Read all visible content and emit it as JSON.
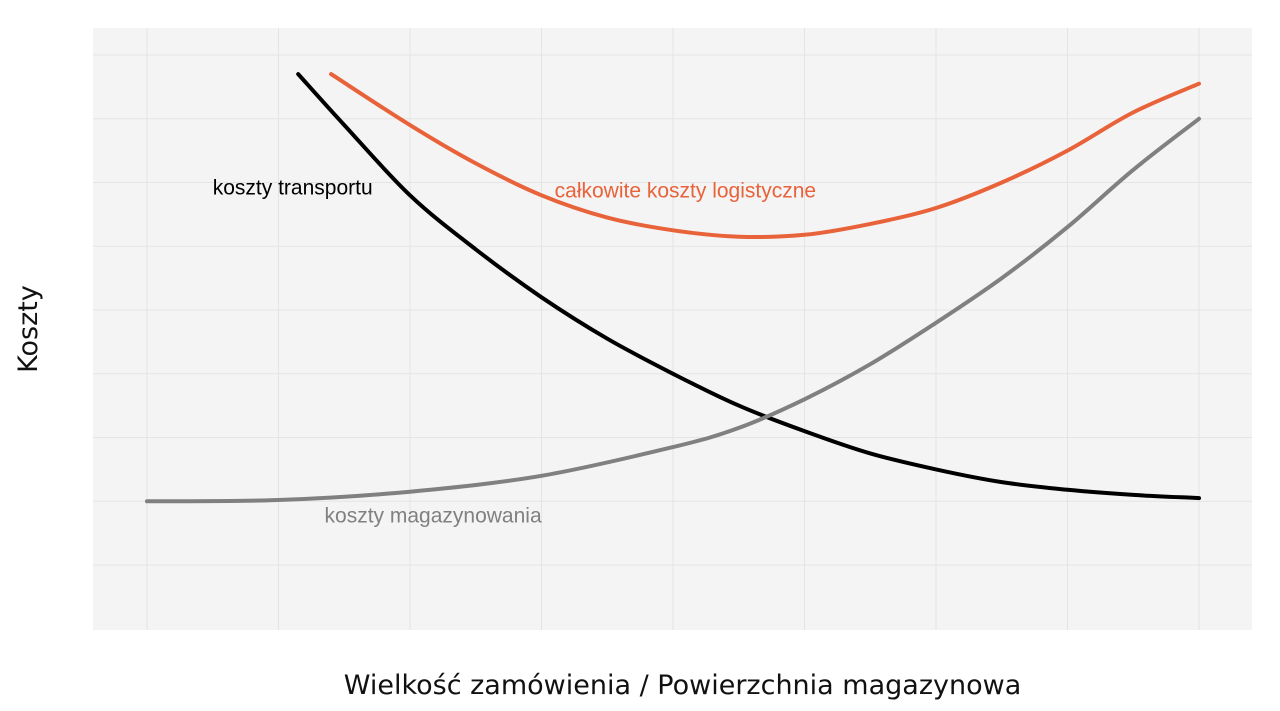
{
  "chart_data": {
    "type": "line",
    "title": "",
    "xlabel": "Wielkość zamówienia / Powierzchnia magazynowa",
    "ylabel": "Koszty",
    "xlim": [
      0,
      8
    ],
    "ylim": [
      0,
      8
    ],
    "grid": true,
    "legend": "none",
    "series": [
      {
        "name": "koszty transportu",
        "color": "#000000",
        "points": [
          [
            1.15,
            7.7
          ],
          [
            1.5,
            6.9
          ],
          [
            2.0,
            5.8
          ],
          [
            2.5,
            4.95
          ],
          [
            3.0,
            4.2
          ],
          [
            3.5,
            3.55
          ],
          [
            4.0,
            3.0
          ],
          [
            4.5,
            2.5
          ],
          [
            5.0,
            2.1
          ],
          [
            5.5,
            1.75
          ],
          [
            6.0,
            1.5
          ],
          [
            6.5,
            1.3
          ],
          [
            7.0,
            1.18
          ],
          [
            7.5,
            1.1
          ],
          [
            8.0,
            1.05
          ]
        ]
      },
      {
        "name": "koszty magazynowania",
        "color": "#808080",
        "points": [
          [
            0.0,
            1.0
          ],
          [
            1.0,
            1.02
          ],
          [
            2.0,
            1.15
          ],
          [
            3.0,
            1.4
          ],
          [
            4.0,
            1.85
          ],
          [
            4.5,
            2.15
          ],
          [
            5.0,
            2.6
          ],
          [
            5.5,
            3.15
          ],
          [
            6.0,
            3.8
          ],
          [
            6.5,
            4.5
          ],
          [
            7.0,
            5.3
          ],
          [
            7.5,
            6.2
          ],
          [
            8.0,
            7.0
          ]
        ]
      },
      {
        "name": "całkowite koszty logistyczne",
        "color": "#e8623a",
        "points": [
          [
            1.4,
            7.7
          ],
          [
            2.0,
            6.9
          ],
          [
            2.5,
            6.3
          ],
          [
            3.0,
            5.8
          ],
          [
            3.5,
            5.45
          ],
          [
            4.0,
            5.25
          ],
          [
            4.5,
            5.15
          ],
          [
            5.0,
            5.18
          ],
          [
            5.5,
            5.35
          ],
          [
            6.0,
            5.6
          ],
          [
            6.5,
            6.0
          ],
          [
            7.0,
            6.5
          ],
          [
            7.5,
            7.1
          ],
          [
            8.0,
            7.55
          ]
        ]
      }
    ],
    "annotations": [
      {
        "text": "koszty transportu",
        "series": "koszty transportu",
        "x": 0.5,
        "y": 5.9,
        "color": "#000000"
      },
      {
        "text": "całkowite koszty logistyczne",
        "series": "całkowite koszty logistyczne",
        "x": 3.1,
        "y": 5.85,
        "color": "#e8623a"
      },
      {
        "text": "koszty magazynowania",
        "series": "koszty magazynowania",
        "x": 1.35,
        "y": 0.75,
        "color": "#808080"
      }
    ],
    "colors": {
      "plot_background": "#f4f4f4",
      "grid": "#e4e4e4"
    }
  }
}
